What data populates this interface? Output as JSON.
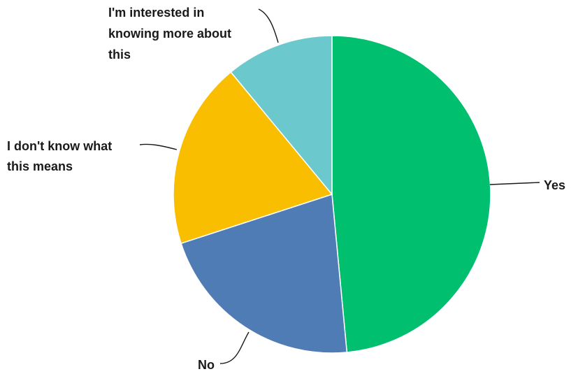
{
  "chart_data": {
    "type": "pie",
    "title": "",
    "legend": "none",
    "slices": [
      {
        "label": "Yes",
        "value": 48.5,
        "color": "#00bf6f"
      },
      {
        "label": "No",
        "value": 21.5,
        "color": "#507cb6"
      },
      {
        "label": "I don't know what this means",
        "value": 19.0,
        "color": "#f9be00"
      },
      {
        "label": "I'm interested in knowing more about this",
        "value": 11.0,
        "color": "#6bc8cd"
      }
    ]
  }
}
